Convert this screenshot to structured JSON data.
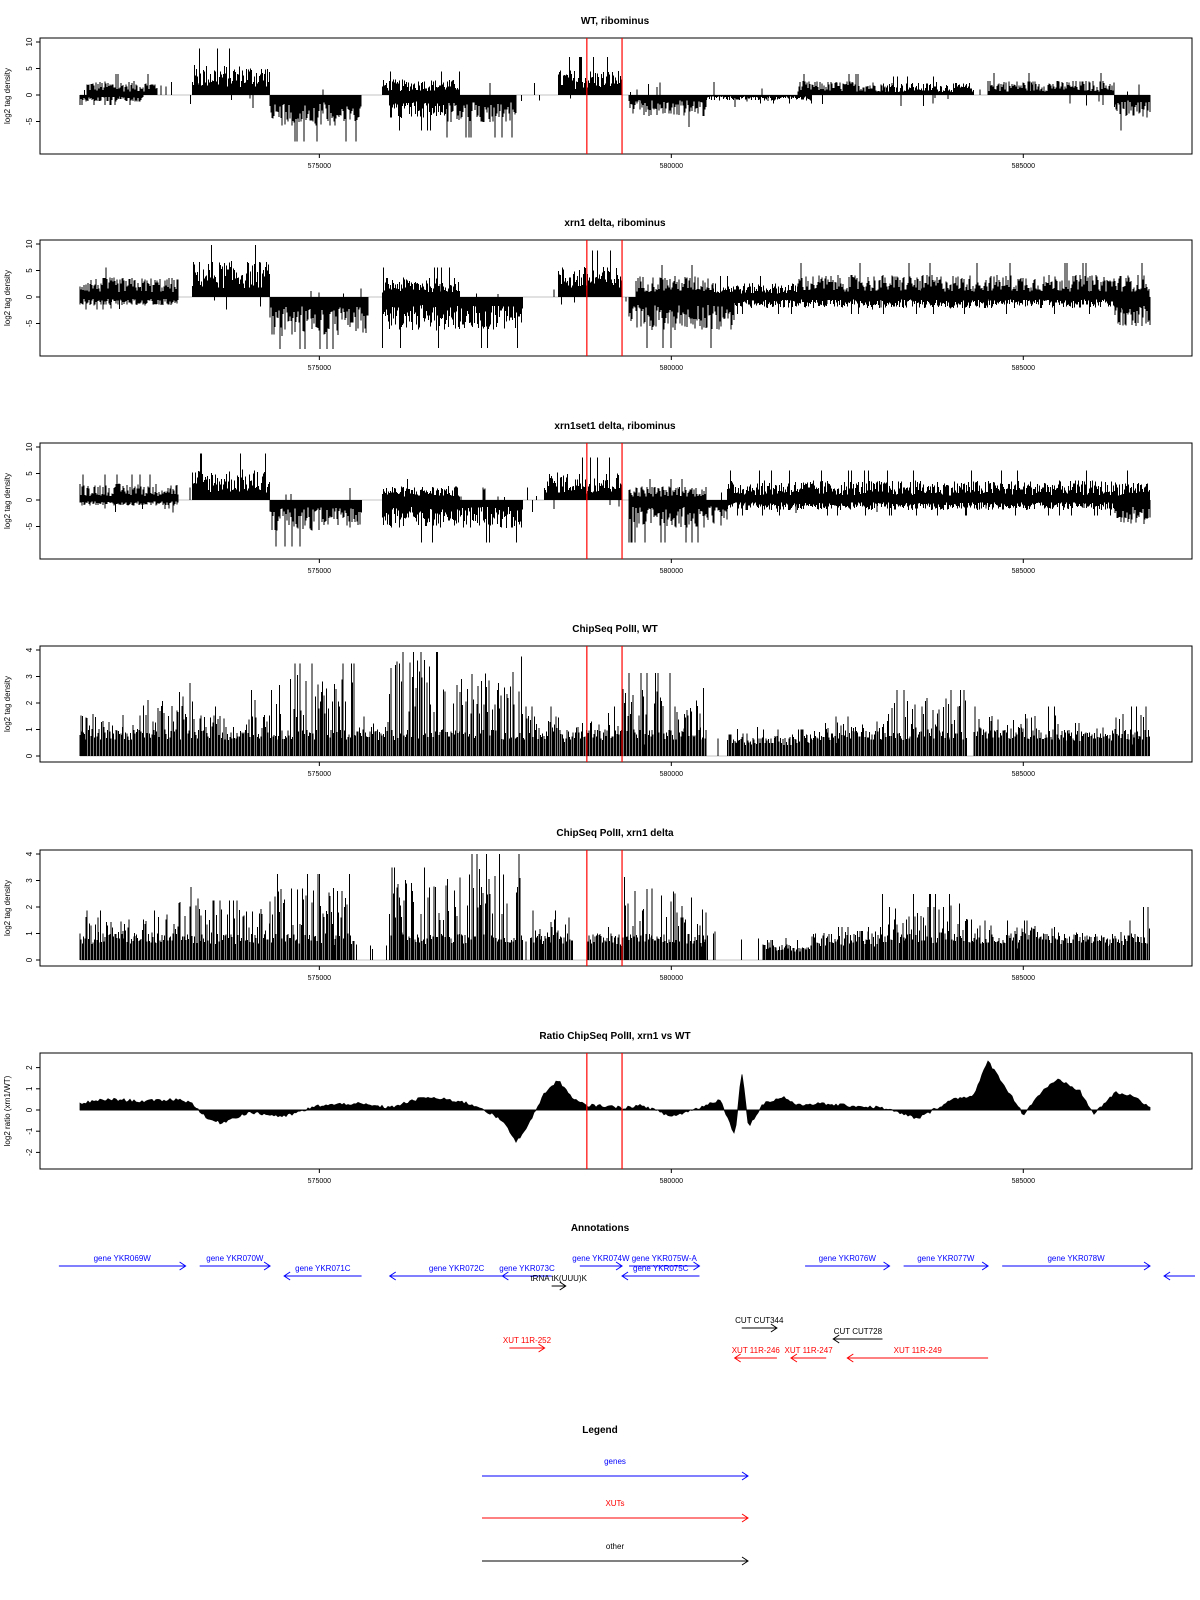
{
  "chart_data": [
    {
      "type": "bar",
      "title": "WT, ribominus",
      "ylabel": "log2 tag density",
      "ylim": [
        -10,
        10
      ],
      "yticks": [
        "-5",
        "0",
        "5",
        "10"
      ],
      "yticks_values": [
        -5,
        0,
        5,
        10
      ],
      "xlim": [
        571000,
        587000
      ],
      "xticks": [
        "575000",
        "580000",
        "585000"
      ],
      "xticks_values": [
        575000,
        580000,
        585000
      ],
      "marker_lines": [
        578800,
        579300
      ],
      "profile": {
        "positive": [
          [
            571700,
            572700,
            2.5
          ],
          [
            573200,
            574300,
            5.5
          ],
          [
            575900,
            577000,
            2.8
          ],
          [
            578400,
            579300,
            4.5
          ],
          [
            581800,
            583000,
            2.5
          ],
          [
            583000,
            584300,
            2.2
          ],
          [
            584500,
            586300,
            2.6
          ]
        ],
        "negative": [
          [
            571600,
            572500,
            -1.2
          ],
          [
            574300,
            575600,
            -5.5
          ],
          [
            576000,
            576800,
            -4.2
          ],
          [
            576800,
            577800,
            -5.0
          ],
          [
            579400,
            580500,
            -3.8
          ],
          [
            580500,
            582000,
            -1.0
          ],
          [
            586300,
            586800,
            -4.2
          ]
        ]
      }
    },
    {
      "type": "bar",
      "title": "xrn1 delta, ribominus",
      "ylabel": "log2 tag density",
      "ylim": [
        -10,
        10
      ],
      "yticks": [
        "-5",
        "0",
        "5",
        "10"
      ],
      "yticks_values": [
        -5,
        0,
        5,
        10
      ],
      "xlim": [
        571000,
        587000
      ],
      "xticks": [
        "575000",
        "580000",
        "585000"
      ],
      "xticks_values": [
        575000,
        580000,
        585000
      ],
      "marker_lines": [
        578800,
        579300
      ],
      "profile": {
        "positive": [
          [
            571600,
            573000,
            3.5
          ],
          [
            573200,
            574300,
            6.5
          ],
          [
            575900,
            577000,
            3.5
          ],
          [
            578400,
            579300,
            5.5
          ],
          [
            579500,
            580600,
            3.8
          ],
          [
            580600,
            581800,
            2.5
          ],
          [
            581800,
            586800,
            4.0
          ]
        ],
        "negative": [
          [
            571600,
            573000,
            -1.5
          ],
          [
            574300,
            575700,
            -7.0
          ],
          [
            575900,
            577900,
            -6.0
          ],
          [
            579400,
            580900,
            -6.0
          ],
          [
            580900,
            586300,
            -2.0
          ],
          [
            586300,
            586800,
            -5.5
          ]
        ]
      }
    },
    {
      "type": "bar",
      "title": "xrn1set1 delta, ribominus",
      "ylabel": "log2 tag density",
      "ylim": [
        -10,
        10
      ],
      "yticks": [
        "-5",
        "0",
        "5",
        "10"
      ],
      "yticks_values": [
        -5,
        0,
        5,
        10
      ],
      "xlim": [
        571000,
        587000
      ],
      "xticks": [
        "575000",
        "580000",
        "585000"
      ],
      "xticks_values": [
        575000,
        580000,
        585000
      ],
      "marker_lines": [
        578800,
        579300
      ],
      "profile": {
        "positive": [
          [
            571600,
            573000,
            3.0
          ],
          [
            573200,
            574300,
            5.5
          ],
          [
            575900,
            577000,
            2.5
          ],
          [
            578200,
            579300,
            5.0
          ],
          [
            579400,
            580500,
            2.5
          ],
          [
            580800,
            586800,
            3.5
          ]
        ],
        "negative": [
          [
            571600,
            573000,
            -1.0
          ],
          [
            574300,
            575600,
            -5.5
          ],
          [
            575900,
            577900,
            -5.0
          ],
          [
            579400,
            580800,
            -5.0
          ],
          [
            580800,
            586300,
            -1.8
          ],
          [
            586300,
            586800,
            -4.5
          ]
        ]
      }
    },
    {
      "type": "bar",
      "title": "ChipSeq PolII, WT",
      "ylabel": "log2 tag density",
      "ylim": [
        0,
        4
      ],
      "yticks": [
        "0",
        "1",
        "2",
        "3",
        "4"
      ],
      "yticks_values": [
        0,
        1,
        2,
        3,
        4
      ],
      "xlim": [
        571000,
        587000
      ],
      "xticks": [
        "575000",
        "580000",
        "585000"
      ],
      "xticks_values": [
        575000,
        580000,
        585000
      ],
      "marker_lines": [
        578800,
        579300
      ],
      "profile": {
        "positive": [
          [
            571600,
            572500,
            1.5
          ],
          [
            572500,
            573200,
            2.2
          ],
          [
            573200,
            574000,
            1.5
          ],
          [
            574000,
            574400,
            2.0
          ],
          [
            574400,
            575500,
            2.8
          ],
          [
            575500,
            576000,
            1.2
          ],
          [
            576000,
            577000,
            3.3
          ],
          [
            577000,
            577900,
            3.0
          ],
          [
            577900,
            578400,
            1.5
          ],
          [
            578400,
            578800,
            1.0
          ],
          [
            578800,
            579300,
            1.5
          ],
          [
            579300,
            580500,
            2.5
          ],
          [
            580800,
            582000,
            0.8
          ],
          [
            582000,
            583000,
            1.2
          ],
          [
            583000,
            584200,
            2.0
          ],
          [
            584300,
            585500,
            1.5
          ],
          [
            585500,
            586300,
            1.0
          ],
          [
            586300,
            586800,
            1.5
          ]
        ],
        "negative": []
      }
    },
    {
      "type": "bar",
      "title": "ChipSeq PolII, xrn1 delta",
      "ylabel": "log2 tag density",
      "ylim": [
        0,
        4
      ],
      "yticks": [
        "0",
        "1",
        "2",
        "3",
        "4"
      ],
      "yticks_values": [
        0,
        1,
        2,
        3,
        4
      ],
      "xlim": [
        571000,
        587000
      ],
      "xticks": [
        "575000",
        "580000",
        "585000"
      ],
      "xticks_values": [
        575000,
        580000,
        585000
      ],
      "marker_lines": [
        578800,
        579300
      ],
      "profile": {
        "positive": [
          [
            571600,
            572700,
            1.5
          ],
          [
            572700,
            573300,
            2.2
          ],
          [
            573300,
            574300,
            1.8
          ],
          [
            574300,
            575500,
            2.6
          ],
          [
            576000,
            577000,
            2.8
          ],
          [
            577000,
            577900,
            3.2
          ],
          [
            578000,
            578600,
            1.5
          ],
          [
            578800,
            579300,
            1.0
          ],
          [
            579300,
            580500,
            2.5
          ],
          [
            581300,
            582000,
            0.6
          ],
          [
            582000,
            583000,
            1.0
          ],
          [
            583000,
            584300,
            2.0
          ],
          [
            584300,
            585500,
            1.2
          ],
          [
            585500,
            586500,
            1.0
          ],
          [
            586500,
            586800,
            1.6
          ]
        ],
        "negative": []
      }
    },
    {
      "type": "area",
      "title": "Ratio ChipSeq PolII, xrn1 vs WT",
      "ylabel": "log2 ratio (xrn1/WT)",
      "ylim": [
        -2.5,
        2.5
      ],
      "yticks": [
        "-2",
        "-1",
        "0",
        "1",
        "2"
      ],
      "yticks_values": [
        -2,
        -1,
        0,
        1,
        2
      ],
      "xlim": [
        571000,
        587000
      ],
      "xticks": [
        "575000",
        "580000",
        "585000"
      ],
      "xticks_values": [
        575000,
        580000,
        585000
      ],
      "marker_lines": [
        578800,
        579300
      ],
      "x": [
        571600,
        572000,
        572500,
        573000,
        573200,
        573400,
        573600,
        574000,
        574500,
        575000,
        575500,
        576000,
        576500,
        577000,
        577300,
        577600,
        577800,
        578000,
        578200,
        578400,
        578600,
        578800,
        579000,
        579300,
        579600,
        580000,
        580400,
        580700,
        580900,
        581000,
        581100,
        581300,
        581600,
        581800,
        582000,
        582500,
        583000,
        583500,
        584000,
        584300,
        584500,
        585000,
        585300,
        585500,
        585800,
        586000,
        586300,
        586600,
        586800
      ],
      "y": [
        0.3,
        0.5,
        0.4,
        0.5,
        0.3,
        -0.4,
        -0.6,
        -0.1,
        -0.3,
        0.2,
        0.3,
        0.1,
        0.6,
        0.4,
        0.1,
        -0.5,
        -1.5,
        -0.5,
        0.8,
        1.4,
        0.5,
        0.2,
        0.2,
        0.1,
        0.2,
        -0.3,
        0.1,
        0.5,
        -1.2,
        1.8,
        -0.8,
        0.3,
        0.6,
        0.2,
        0.3,
        0.2,
        0.1,
        -0.4,
        0.5,
        0.7,
        2.3,
        -0.2,
        1.0,
        1.4,
        0.9,
        -0.2,
        0.8,
        0.6,
        0.1
      ]
    }
  ],
  "annotations": {
    "title": "Annotations",
    "features": [
      {
        "label": "gene YKR069W",
        "kind": "gene",
        "x1": 571300,
        "x2": 573100,
        "dir": "right",
        "row": 0
      },
      {
        "label": "gene YKR070W",
        "kind": "gene",
        "x1": 573300,
        "x2": 574300,
        "dir": "right",
        "row": 0
      },
      {
        "label": "gene YKR071C",
        "kind": "gene",
        "x1": 574500,
        "x2": 575600,
        "dir": "left",
        "row": 1
      },
      {
        "label": "gene YKR072C",
        "kind": "gene",
        "x1": 576000,
        "x2": 577900,
        "dir": "left",
        "row": 1
      },
      {
        "label": "gene YKR073C",
        "kind": "gene",
        "x1": 577600,
        "x2": 578300,
        "dir": "left",
        "row": 1
      },
      {
        "label": "gene YKR074W",
        "kind": "gene",
        "x1": 578700,
        "x2": 579300,
        "dir": "right",
        "row": 0
      },
      {
        "label": "gene YKR075W-A",
        "kind": "gene",
        "x1": 579400,
        "x2": 580400,
        "dir": "right",
        "row": 0
      },
      {
        "label": "gene YKR075C",
        "kind": "gene",
        "x1": 579300,
        "x2": 580400,
        "dir": "left",
        "row": 1
      },
      {
        "label": "tRNA tK(UUU)K",
        "kind": "other",
        "x1": 578300,
        "x2": 578500,
        "dir": "right",
        "row": 2
      },
      {
        "label": "gene YKR076W",
        "kind": "gene",
        "x1": 581900,
        "x2": 583100,
        "dir": "right",
        "row": 0
      },
      {
        "label": "gene YKR077W",
        "kind": "gene",
        "x1": 583300,
        "x2": 584500,
        "dir": "right",
        "row": 0
      },
      {
        "label": "gene YKR078W",
        "kind": "gene",
        "x1": 584700,
        "x2": 586800,
        "dir": "right",
        "row": 0
      },
      {
        "label": "",
        "kind": "gene",
        "x1": 587000,
        "x2": 587800,
        "dir": "left",
        "row": 1
      },
      {
        "label": "CUT CUT344",
        "kind": "other",
        "x1": 581000,
        "x2": 581500,
        "dir": "right",
        "row": 5
      },
      {
        "label": "CUT CUT728",
        "kind": "other",
        "x1": 582300,
        "x2": 583000,
        "dir": "left",
        "row": 6
      },
      {
        "label": "XUT 11R-252",
        "kind": "xut",
        "x1": 577700,
        "x2": 578200,
        "dir": "right",
        "row": 7
      },
      {
        "label": "XUT 11R-246",
        "kind": "xut",
        "x1": 580900,
        "x2": 581500,
        "dir": "left",
        "row": 8
      },
      {
        "label": "XUT 11R-247",
        "kind": "xut",
        "x1": 581700,
        "x2": 582200,
        "dir": "left",
        "row": 8
      },
      {
        "label": "XUT 11R-249",
        "kind": "xut",
        "x1": 582500,
        "x2": 584500,
        "dir": "left",
        "row": 8
      }
    ]
  },
  "legend": {
    "title": "Legend",
    "entries": [
      {
        "label": "genes",
        "kind": "gene"
      },
      {
        "label": "XUTs",
        "kind": "xut"
      },
      {
        "label": "other",
        "kind": "other"
      }
    ]
  },
  "colors": {
    "gene": "#0000ff",
    "xut": "#ff0000",
    "other": "#000000",
    "marker": "#ff0000",
    "signal": "#000000",
    "frame": "#000000"
  }
}
